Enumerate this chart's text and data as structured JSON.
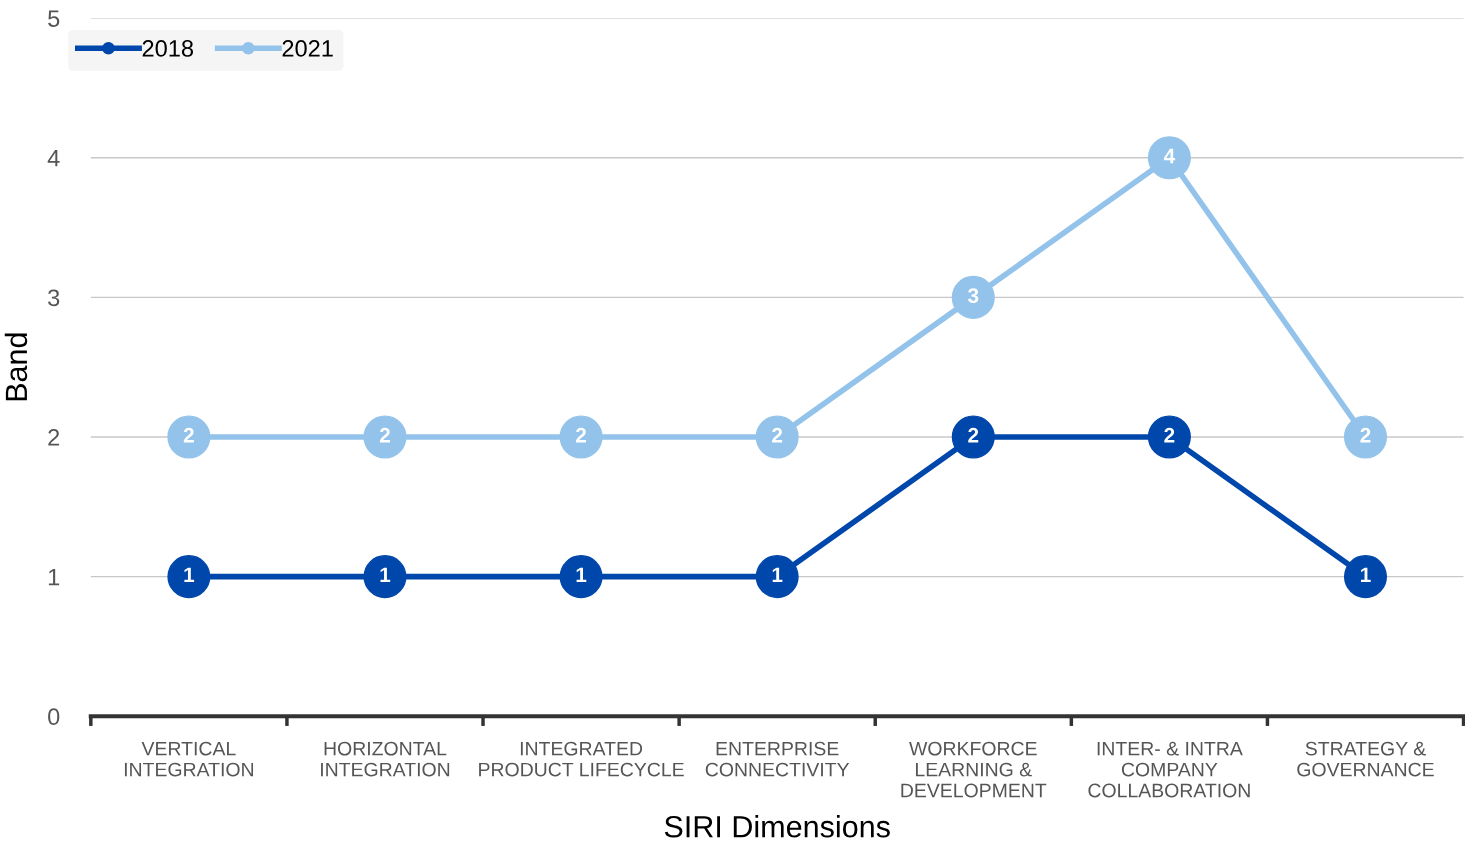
{
  "chart_data": {
    "type": "line",
    "xlabel": "SIRI Dimensions",
    "ylabel": "Band",
    "categories": [
      "VERTICAL\nINTEGRATION",
      "HORIZONTAL\nINTEGRATION",
      "INTEGRATED\nPRODUCT LIFECYCLE",
      "ENTERPRISE\nCONNECTIVITY",
      "WORKFORCE\nLEARNING &\nDEVELOPMENT",
      "INTER- & INTRA\nCOMPANY\nCOLLABORATION",
      "STRATEGY &\nGOVERNANCE"
    ],
    "series": [
      {
        "name": "2018",
        "color": "#0047ab",
        "values": [
          1,
          1,
          1,
          1,
          2,
          2,
          1
        ]
      },
      {
        "name": "2021",
        "color": "#93c3ea",
        "values": [
          2,
          2,
          2,
          2,
          3,
          4,
          2
        ]
      }
    ],
    "ylim": [
      0,
      5
    ],
    "yticks": [
      0,
      1,
      2,
      3,
      4,
      5
    ],
    "grid": "y",
    "legend": "top left",
    "marker": "circle",
    "line_style": "solid",
    "data_labels": true
  }
}
